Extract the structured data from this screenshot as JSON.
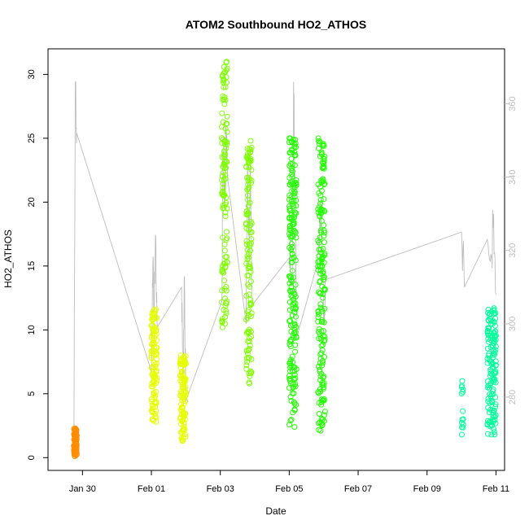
{
  "chart_data": {
    "type": "scatter",
    "title": "ATOM2 Southbound HO2_ATHOS",
    "xlabel": "Date",
    "ylabel": "HO2_ATHOS",
    "x_axis": {
      "kind": "date",
      "range": [
        "2017-01-29T00:00",
        "2017-02-11T06:00"
      ],
      "ticks": [
        "2017-01-30",
        "2017-02-01",
        "2017-02-03",
        "2017-02-05",
        "2017-02-07",
        "2017-02-09",
        "2017-02-11"
      ],
      "tick_labels": [
        "Jan 30",
        "Feb 01",
        "Feb 03",
        "Feb 05",
        "Feb 07",
        "Feb 09",
        "Feb 11"
      ]
    },
    "y_axis": {
      "range": [
        -1,
        32
      ],
      "ticks": [
        0,
        5,
        10,
        15,
        20,
        25,
        30
      ]
    },
    "y2_axis": {
      "range": [
        260,
        375
      ],
      "ticks": [
        280,
        300,
        320,
        340,
        360
      ],
      "color": "#bebebe"
    },
    "grid": false,
    "legend": "none",
    "point_series": [
      {
        "color": "#ff8c00",
        "start": "2017-01-29T18:00",
        "end": "2017-01-29T20:00",
        "min": 0.1,
        "max": 2.3,
        "count": 90
      },
      {
        "color": "#e6ff00",
        "start": "2017-02-01T00:00",
        "end": "2017-02-01T04:00",
        "min": 2.8,
        "max": 11.6,
        "count": 110
      },
      {
        "color": "#e6ff00",
        "start": "2017-02-01T20:00",
        "end": "2017-02-02T00:00",
        "min": 1.3,
        "max": 8.0,
        "count": 110
      },
      {
        "color": "#7fff00",
        "start": "2017-02-03T01:00",
        "end": "2017-02-03T05:00",
        "min": 10.2,
        "max": 31.0,
        "count": 120
      },
      {
        "color": "#7fff00",
        "start": "2017-02-03T18:00",
        "end": "2017-02-03T22:00",
        "min": 5.8,
        "max": 24.8,
        "count": 120
      },
      {
        "color": "#22ff00",
        "start": "2017-02-05T00:00",
        "end": "2017-02-05T05:00",
        "min": 2.4,
        "max": 25.0,
        "count": 200
      },
      {
        "color": "#22ff00",
        "start": "2017-02-05T20:00",
        "end": "2017-02-06T01:00",
        "min": 2.1,
        "max": 25.0,
        "count": 180
      },
      {
        "color": "#00ff99",
        "start": "2017-02-10T00:00",
        "end": "2017-02-10T02:00",
        "min": 1.8,
        "max": 6.0,
        "count": 14
      },
      {
        "color": "#00ff99",
        "start": "2017-02-10T18:00",
        "end": "2017-02-11T00:00",
        "min": 1.8,
        "max": 11.7,
        "count": 140
      }
    ],
    "line_series": {
      "color": "#bebebe",
      "axis": "right",
      "points": [
        [
          "2017-01-29T18:00",
          264
        ],
        [
          "2017-01-29T19:00",
          366
        ],
        [
          "2017-01-29T20:00",
          352
        ],
        [
          "2017-02-01T00:00",
          287
        ],
        [
          "2017-02-01T01:00",
          316
        ],
        [
          "2017-02-01T02:00",
          305
        ],
        [
          "2017-02-01T03:00",
          324
        ],
        [
          "2017-02-01T04:00",
          299
        ],
        [
          "2017-02-01T21:00",
          310
        ],
        [
          "2017-02-01T22:00",
          282
        ],
        [
          "2017-02-01T23:00",
          313
        ],
        [
          "2017-02-02T00:00",
          279
        ],
        [
          "2017-02-03T01:00",
          306
        ],
        [
          "2017-02-03T02:00",
          348
        ],
        [
          "2017-02-03T03:00",
          331
        ],
        [
          "2017-02-03T04:00",
          350
        ],
        [
          "2017-02-03T05:00",
          340
        ],
        [
          "2017-02-03T18:00",
          300
        ],
        [
          "2017-02-03T19:00",
          346
        ],
        [
          "2017-02-03T20:00",
          318
        ],
        [
          "2017-02-03T21:00",
          347
        ],
        [
          "2017-02-03T22:00",
          305
        ],
        [
          "2017-02-05T00:00",
          318
        ],
        [
          "2017-02-05T02:00",
          310
        ],
        [
          "2017-02-05T03:00",
          366
        ],
        [
          "2017-02-05T04:00",
          342
        ],
        [
          "2017-02-05T05:00",
          296
        ],
        [
          "2017-02-05T20:00",
          317
        ],
        [
          "2017-02-05T22:00",
          334
        ],
        [
          "2017-02-06T00:00",
          300
        ],
        [
          "2017-02-06T01:00",
          312
        ],
        [
          "2017-02-10T00:00",
          325
        ],
        [
          "2017-02-10T02:00",
          310
        ],
        [
          "2017-02-10T18:00",
          323
        ],
        [
          "2017-02-10T21:00",
          318
        ],
        [
          "2017-02-10T22:00",
          329
        ],
        [
          "2017-02-11T00:00",
          308
        ]
      ]
    }
  }
}
